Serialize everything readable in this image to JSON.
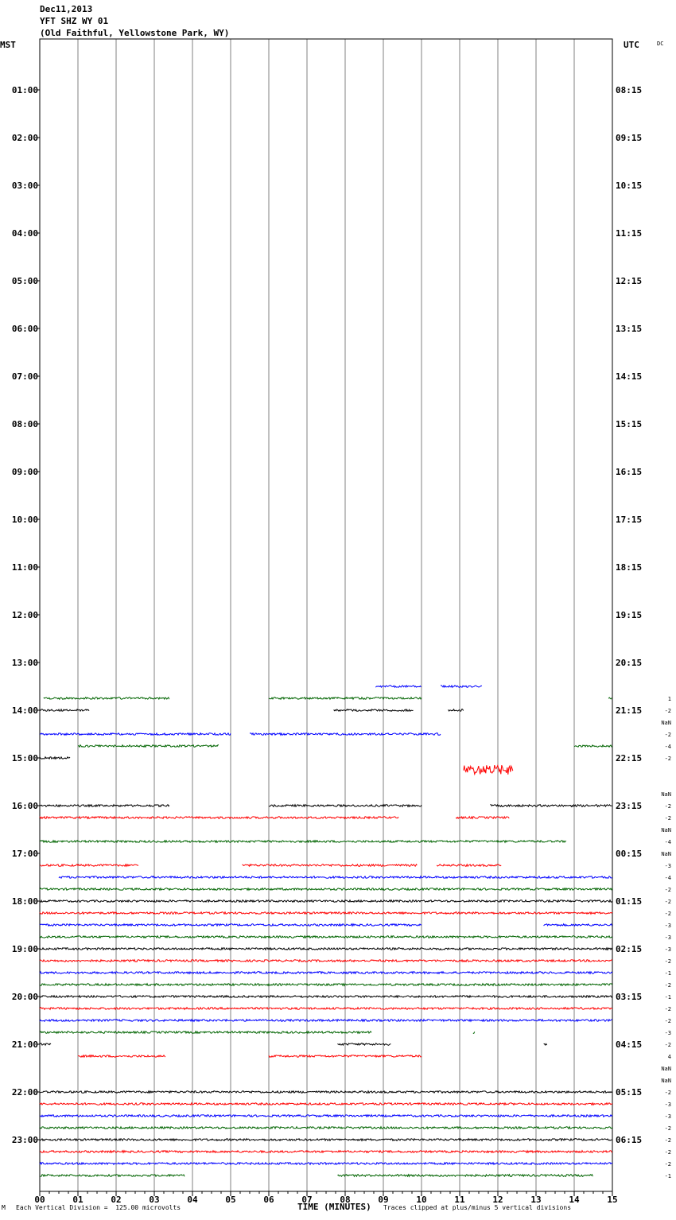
{
  "header": {
    "date": "Dec11,2013",
    "station": "YFT SHZ WY 01",
    "location": "(Old Faithful, Yellowstone Park, WY)"
  },
  "chart_data": {
    "type": "line",
    "title": "YFT SHZ WY 01",
    "left_axis_label": "MST",
    "right_axis_label": "UTC",
    "corner_label": "DC",
    "xlabel": "TIME (MINUTES)",
    "x_ticks": [
      "00",
      "01",
      "02",
      "03",
      "04",
      "05",
      "06",
      "07",
      "08",
      "09",
      "10",
      "11",
      "12",
      "13",
      "14",
      "15"
    ],
    "xlim": [
      0,
      15
    ],
    "grid": true,
    "left_hour_labels": [
      "01:00",
      "02:00",
      "03:00",
      "04:00",
      "05:00",
      "06:00",
      "07:00",
      "08:00",
      "09:00",
      "10:00",
      "11:00",
      "12:00",
      "13:00",
      "14:00",
      "15:00",
      "16:00",
      "17:00",
      "18:00",
      "19:00",
      "20:00",
      "21:00",
      "22:00",
      "23:00"
    ],
    "right_hour_labels": [
      "08:15",
      "09:15",
      "10:15",
      "11:15",
      "12:15",
      "13:15",
      "14:15",
      "15:15",
      "16:15",
      "17:15",
      "18:15",
      "19:15",
      "20:15",
      "21:15",
      "22:15",
      "23:15",
      "00:15",
      "01:15",
      "02:15",
      "03:15",
      "04:15",
      "05:15",
      "06:15"
    ],
    "trace_colors": [
      "#000000",
      "#ff0000",
      "#0000ff",
      "#006400"
    ],
    "traces": [
      {
        "row": 54,
        "color_index": 2,
        "segments": [
          [
            8.8,
            10.0
          ],
          [
            10.5,
            11.6
          ]
        ]
      },
      {
        "row": 55,
        "color_index": 3,
        "segments": [
          [
            0.1,
            3.4
          ],
          [
            6.0,
            10.0
          ],
          [
            14.9,
            15.0
          ]
        ]
      },
      {
        "row": 56,
        "color_index": 0,
        "segments": [
          [
            0.0,
            1.3
          ],
          [
            7.7,
            9.8
          ],
          [
            10.7,
            11.1
          ]
        ]
      },
      {
        "row": 58,
        "color_index": 2,
        "segments": [
          [
            0.0,
            5.0
          ],
          [
            5.5,
            10.5
          ]
        ]
      },
      {
        "row": 59,
        "color_index": 3,
        "segments": [
          [
            1.0,
            4.7
          ],
          [
            14.0,
            15.0
          ]
        ]
      },
      {
        "row": 60,
        "color_index": 0,
        "segments": [
          [
            0.0,
            0.8
          ]
        ]
      },
      {
        "row": 61,
        "color_index": 1,
        "segments": [
          [
            11.1,
            12.4
          ]
        ],
        "burst": true
      },
      {
        "row": 64,
        "color_index": 0,
        "segments": [
          [
            0.0,
            3.4
          ],
          [
            6.0,
            10.0
          ],
          [
            11.8,
            15.0
          ]
        ]
      },
      {
        "row": 65,
        "color_index": 1,
        "segments": [
          [
            0.0,
            9.4
          ],
          [
            10.9,
            12.3
          ]
        ]
      },
      {
        "row": 67,
        "color_index": 3,
        "segments": [
          [
            0.0,
            13.8
          ]
        ]
      },
      {
        "row": 69,
        "color_index": 1,
        "segments": [
          [
            0.0,
            2.6
          ],
          [
            5.3,
            9.9
          ],
          [
            10.4,
            12.1
          ]
        ]
      },
      {
        "row": 70,
        "color_index": 2,
        "segments": [
          [
            0.5,
            15.0
          ]
        ]
      },
      {
        "row": 71,
        "color_index": 3,
        "segments": [
          [
            0.0,
            15.0
          ]
        ]
      },
      {
        "row": 72,
        "color_index": 0,
        "segments": [
          [
            0.0,
            15.0
          ]
        ]
      },
      {
        "row": 73,
        "color_index": 1,
        "segments": [
          [
            0.0,
            15.0
          ]
        ]
      },
      {
        "row": 74,
        "color_index": 2,
        "segments": [
          [
            0.0,
            10.0
          ],
          [
            13.2,
            15.0
          ]
        ]
      },
      {
        "row": 75,
        "color_index": 3,
        "segments": [
          [
            0.0,
            15.0
          ]
        ]
      },
      {
        "row": 76,
        "color_index": 0,
        "segments": [
          [
            0.0,
            15.0
          ]
        ]
      },
      {
        "row": 77,
        "color_index": 1,
        "segments": [
          [
            0.0,
            15.0
          ]
        ]
      },
      {
        "row": 78,
        "color_index": 2,
        "segments": [
          [
            0.0,
            15.0
          ]
        ]
      },
      {
        "row": 79,
        "color_index": 3,
        "segments": [
          [
            0.0,
            15.0
          ]
        ]
      },
      {
        "row": 80,
        "color_index": 0,
        "segments": [
          [
            0.0,
            15.0
          ]
        ]
      },
      {
        "row": 81,
        "color_index": 1,
        "segments": [
          [
            0.0,
            15.0
          ]
        ]
      },
      {
        "row": 82,
        "color_index": 2,
        "segments": [
          [
            0.0,
            15.0
          ]
        ]
      },
      {
        "row": 83,
        "color_index": 3,
        "segments": [
          [
            0.0,
            8.7
          ],
          [
            11.35,
            11.4
          ]
        ]
      },
      {
        "row": 84,
        "color_index": 0,
        "segments": [
          [
            0.0,
            0.3
          ],
          [
            7.8,
            9.2
          ],
          [
            13.2,
            13.3
          ]
        ]
      },
      {
        "row": 85,
        "color_index": 1,
        "segments": [
          [
            1.0,
            3.3
          ],
          [
            6.0,
            10.0
          ]
        ]
      },
      {
        "row": 88,
        "color_index": 0,
        "segments": [
          [
            0.0,
            15.0
          ]
        ]
      },
      {
        "row": 89,
        "color_index": 1,
        "segments": [
          [
            0.0,
            15.0
          ]
        ]
      },
      {
        "row": 90,
        "color_index": 2,
        "segments": [
          [
            0.0,
            15.0
          ]
        ]
      },
      {
        "row": 91,
        "color_index": 3,
        "segments": [
          [
            0.0,
            15.0
          ]
        ]
      },
      {
        "row": 92,
        "color_index": 0,
        "segments": [
          [
            0.0,
            15.0
          ]
        ]
      },
      {
        "row": 93,
        "color_index": 1,
        "segments": [
          [
            0.0,
            15.0
          ]
        ]
      },
      {
        "row": 94,
        "color_index": 2,
        "segments": [
          [
            0.0,
            15.0
          ]
        ]
      },
      {
        "row": 95,
        "color_index": 3,
        "segments": [
          [
            0.0,
            3.8
          ],
          [
            7.8,
            14.5
          ]
        ]
      }
    ],
    "dc_offsets": [
      {
        "row": 55,
        "text": "1"
      },
      {
        "row": 56,
        "text": "-2"
      },
      {
        "row": 57,
        "text": "NaN"
      },
      {
        "row": 58,
        "text": "-2"
      },
      {
        "row": 59,
        "text": "-4"
      },
      {
        "row": 60,
        "text": "-2"
      },
      {
        "row": 63,
        "text": "NaN"
      },
      {
        "row": 64,
        "text": "-2"
      },
      {
        "row": 65,
        "text": "-2"
      },
      {
        "row": 66,
        "text": "NaN"
      },
      {
        "row": 67,
        "text": "-4"
      },
      {
        "row": 68,
        "text": "NaN"
      },
      {
        "row": 69,
        "text": "-3"
      },
      {
        "row": 70,
        "text": "-4"
      },
      {
        "row": 71,
        "text": "-2"
      },
      {
        "row": 72,
        "text": "-2"
      },
      {
        "row": 73,
        "text": "-2"
      },
      {
        "row": 74,
        "text": "-3"
      },
      {
        "row": 75,
        "text": "-3"
      },
      {
        "row": 76,
        "text": "-3"
      },
      {
        "row": 77,
        "text": "-2"
      },
      {
        "row": 78,
        "text": "-1"
      },
      {
        "row": 79,
        "text": "-2"
      },
      {
        "row": 80,
        "text": "-1"
      },
      {
        "row": 81,
        "text": "-2"
      },
      {
        "row": 82,
        "text": "-2"
      },
      {
        "row": 83,
        "text": "-3"
      },
      {
        "row": 84,
        "text": "-2"
      },
      {
        "row": 85,
        "text": "4"
      },
      {
        "row": 86,
        "text": "NaN"
      },
      {
        "row": 87,
        "text": "NaN"
      },
      {
        "row": 88,
        "text": "-2"
      },
      {
        "row": 89,
        "text": "-3"
      },
      {
        "row": 90,
        "text": "-3"
      },
      {
        "row": 91,
        "text": "-2"
      },
      {
        "row": 92,
        "text": "-2"
      },
      {
        "row": 93,
        "text": "-2"
      },
      {
        "row": 94,
        "text": "-2"
      },
      {
        "row": 95,
        "text": "-1"
      }
    ]
  },
  "footer": {
    "corner_mark": "M",
    "scale_note": "Each Vertical Division =  125.00 microvolts",
    "axis_title": "TIME (MINUTES)",
    "clip_note": "Traces clipped at plus/minus 5 vertical divisions"
  }
}
